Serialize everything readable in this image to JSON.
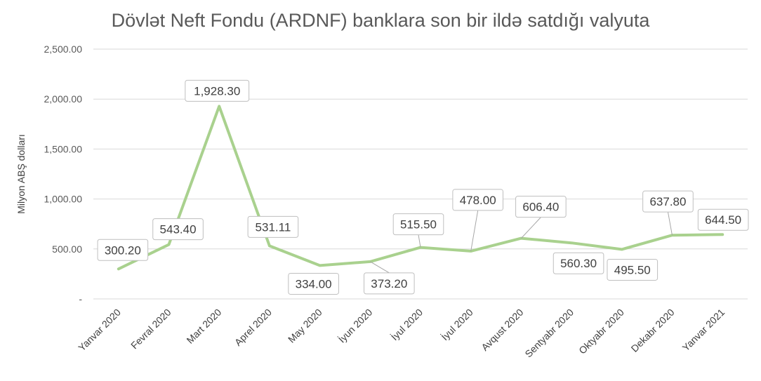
{
  "chart_data": {
    "type": "line",
    "title": "Dövlət Neft Fondu (ARDNF) banklara son bir ildə satdığı valyuta",
    "ylabel": "Milyon ABŞ dolları",
    "xlabel": "",
    "categories": [
      "Yanvar 2020",
      "Fevral 2020",
      "Mart 2020",
      "Aprel 2020",
      "May 2020",
      "İyun 2020",
      "İyul 2020",
      "İyul 2020",
      "Avqust 2020",
      "Sentyabr 2020",
      "Oktyabr 2020",
      "Dekabr 2020",
      "Yanvar 2021"
    ],
    "series": [
      {
        "values": [
          300.2,
          543.4,
          1928.3,
          531.11,
          334.0,
          373.2,
          515.5,
          478.0,
          606.4,
          560.3,
          495.5,
          637.8,
          644.5
        ],
        "data_labels": [
          "300.20",
          "543.40",
          "1,928.30",
          "531.11",
          "334.00",
          "373.20",
          "515.50",
          "478.00",
          "606.40",
          "560.30",
          "495.50",
          "637.80",
          "644.50"
        ]
      }
    ],
    "ylim": [
      0,
      2500
    ],
    "y_ticks": [
      0,
      500,
      1000,
      1500,
      2000,
      2500
    ],
    "y_tick_labels": [
      "-",
      "500.00",
      "1,000.00",
      "1,500.00",
      "2,000.00",
      "2,500.00"
    ],
    "grid": true,
    "legend": "none",
    "line_color": "#a9d18e",
    "grid_color": "#d9d9d9"
  }
}
